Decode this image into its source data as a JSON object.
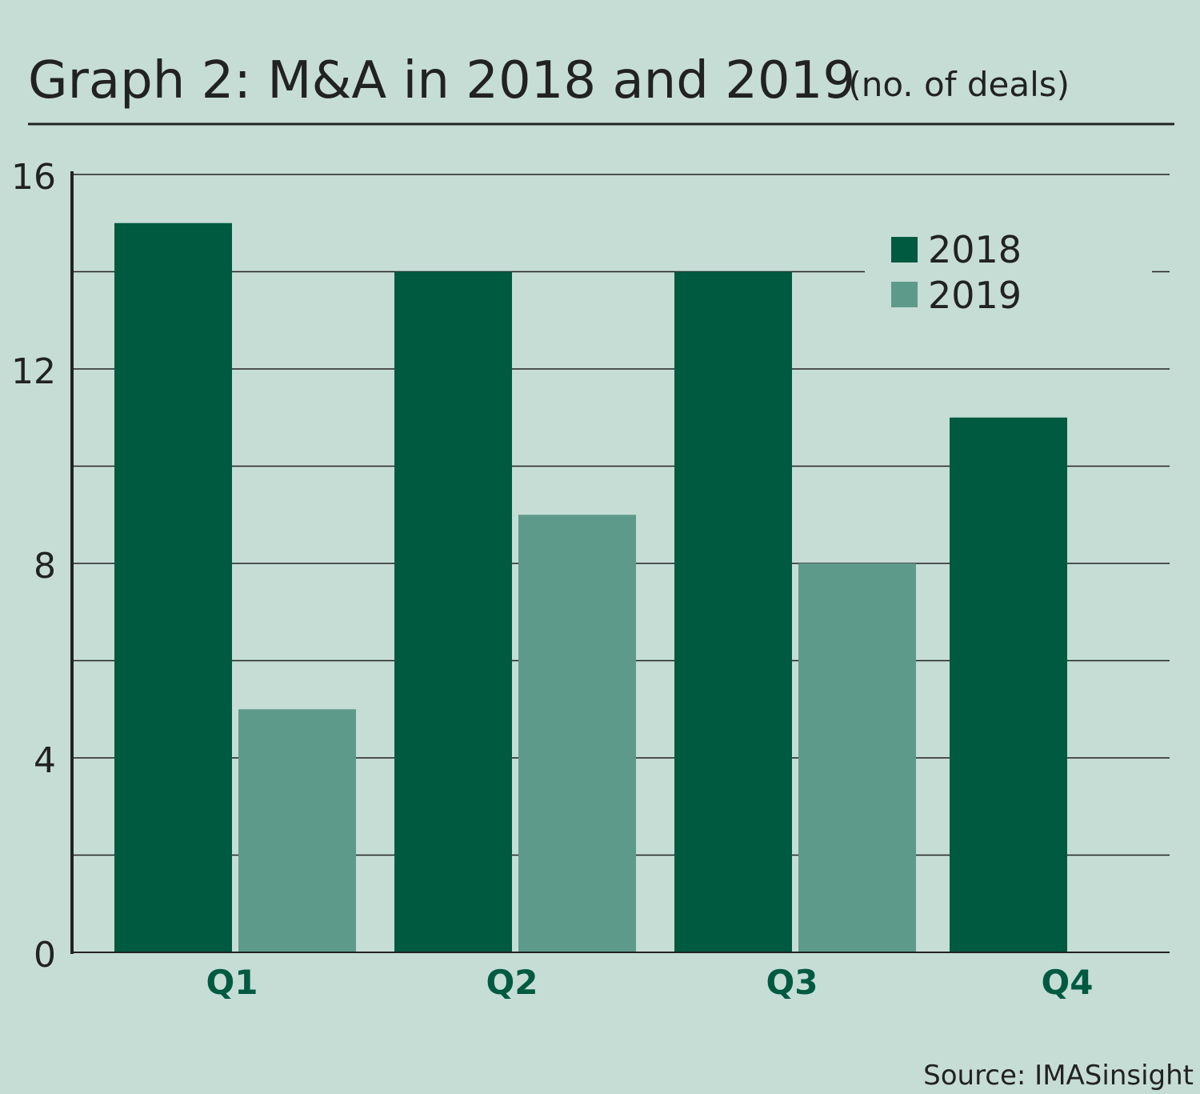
{
  "chart_data": {
    "type": "bar",
    "title": "Graph 2: M&A in 2018 and 2019",
    "subtitle": "(no. of deals)",
    "categories": [
      "Q1",
      "Q2",
      "Q3",
      "Q4"
    ],
    "series": [
      {
        "name": "2018",
        "values": [
          15,
          14,
          14,
          11
        ],
        "color": "#005a40"
      },
      {
        "name": "2019",
        "values": [
          5,
          9,
          8,
          null
        ],
        "color": "#5e9a8a"
      }
    ],
    "ylim": [
      0,
      16
    ],
    "yticks": [
      0,
      4,
      8,
      12,
      16
    ],
    "grid_step": 2,
    "grid": true,
    "legend_placement": "top-right",
    "source": "Source: IMASinsight",
    "colors": {
      "background": "#c6ddd6",
      "text_category": "#005a40",
      "text": "#222222"
    }
  }
}
